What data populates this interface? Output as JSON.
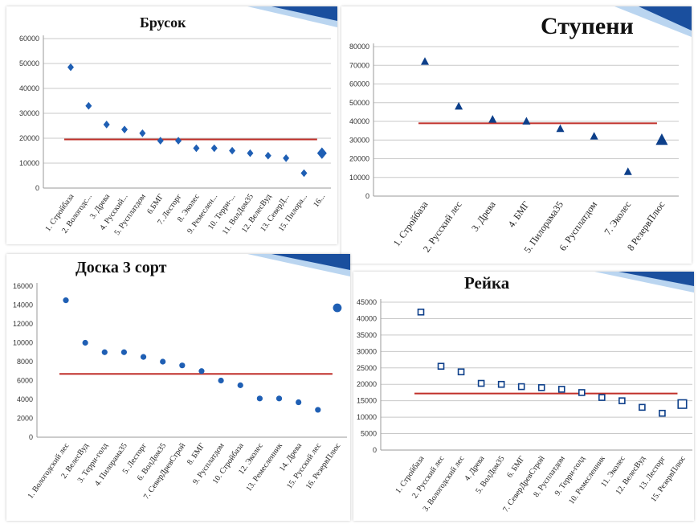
{
  "colors": {
    "marker": "#1f5fb4",
    "marker_dark": "#0d3f8a",
    "avg_line": "#c0302a",
    "grid": "#c8c8c8",
    "axis_text": "#333333",
    "banner_dark": "#1a4f9e",
    "banner_light": "#9cc3ea"
  },
  "chart_data": [
    {
      "type": "scatter",
      "title": "Брусок",
      "marker": "diamond",
      "categories": [
        "1. Стройбаза",
        "2. Вологодс...",
        "3. Древа",
        "4. Русский...",
        "5. Русплатдом",
        "6.БМГ",
        "7. Лесторг",
        "8. Эколес",
        "9. Ремеслен...",
        "10. Терри-...",
        "11. ВолДом35",
        "12. ВелесВуд",
        "13. СеверД...",
        "15. Пилора...",
        "16..."
      ],
      "values": [
        48500,
        33000,
        25500,
        23500,
        22000,
        19000,
        19000,
        16000,
        16000,
        15000,
        14000,
        13000,
        12000,
        6000,
        14000
      ],
      "average": 19500,
      "ylim": [
        0,
        60000
      ],
      "yticks": [
        "0",
        "10000",
        "20000",
        "30000",
        "40000",
        "50000",
        "60000"
      ],
      "grid": true
    },
    {
      "type": "scatter",
      "title": "Ступени",
      "marker": "triangle",
      "categories": [
        "1. Стройбаза",
        "2. Русский лес",
        "3. Древа",
        "4. БМГ",
        "5. Пилорама35",
        "6. Русплатдом",
        "7. Эколес",
        "8 РезервПлюс"
      ],
      "values": [
        72000,
        48000,
        41000,
        40000,
        36000,
        32000,
        13000,
        30000
      ],
      "average": 39000,
      "ylim": [
        0,
        80000
      ],
      "yticks": [
        "0",
        "10000",
        "20000",
        "30000",
        "40000",
        "50000",
        "60000",
        "70000",
        "80000"
      ],
      "grid": true
    },
    {
      "type": "scatter",
      "title": "Доска 3 сорт",
      "marker": "circle",
      "categories": [
        "1. Вологодский лес",
        "2. ВелесВуд",
        "3. Терри-голд",
        "4. Пилорама35",
        "5. Лесторг",
        "6. ВолДом35",
        "7. СеверДревСтрой",
        "8. БМГ",
        "9. Русплатдом",
        "10. Стройбаза",
        "12. Эколес",
        "13. Ремесленник",
        "14. Древа",
        "15. Русский лес",
        "16. РезервПлюс"
      ],
      "values": [
        14500,
        10000,
        9000,
        9000,
        8500,
        8000,
        7600,
        7000,
        6000,
        5500,
        4100,
        4100,
        3700,
        2900,
        13700
      ],
      "average": 6700,
      "ylim": [
        0,
        16000
      ],
      "yticks": [
        "0",
        "2000",
        "4000",
        "6000",
        "8000",
        "10000",
        "12000",
        "14000",
        "16000"
      ],
      "grid": false
    },
    {
      "type": "scatter",
      "title": "Рейка",
      "marker": "square-open",
      "categories": [
        "1. Стройбаза",
        "2. Русский лес",
        "3. Вологодский лес",
        "4. Древа",
        "5. ВолДом35",
        "6. БМГ",
        "7. СеверДревСтрой",
        "8. Русплатдом",
        "9. Терри-голд",
        "10. Ремесленник",
        "11. Эколес",
        "12. ВелесВуд",
        "13. Лесторг",
        "15. РезервПлюс"
      ],
      "values": [
        42000,
        25500,
        23800,
        20300,
        20000,
        19300,
        19000,
        18500,
        17500,
        16000,
        15000,
        13000,
        11200,
        14000
      ],
      "average": 17200,
      "ylim": [
        0,
        45000
      ],
      "yticks": [
        "0",
        "5000",
        "10000",
        "15000",
        "20000",
        "25000",
        "30000",
        "35000",
        "40000",
        "45000"
      ],
      "grid": true
    }
  ]
}
